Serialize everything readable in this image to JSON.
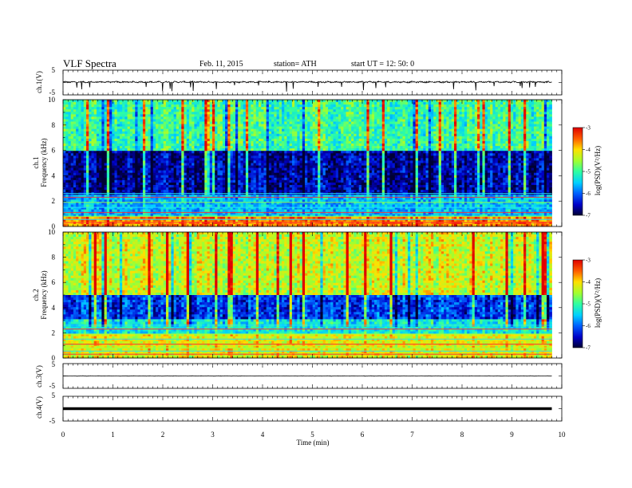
{
  "header": {
    "title": "VLF  Spectra",
    "date": "Feb. 11, 2015",
    "station": "station= ATH",
    "start": "start  UT  =    12: 50: 0"
  },
  "chart_data": [
    {
      "type": "line",
      "panel": "ch1-waveform",
      "ylabel": "ch.1(V)",
      "ylim": [
        -5,
        5
      ],
      "yticks": [
        "5",
        "-5"
      ],
      "xlim": [
        0,
        10
      ],
      "x_end": 9.8,
      "series": [
        {
          "baseline": 0.2,
          "amplitude": 0.4
        }
      ]
    },
    {
      "type": "heatmap",
      "panel": "ch1-spectrogram",
      "ylabel": "Frequency  (kHz)",
      "channel_label": "ch.1",
      "ylim": [
        0,
        10
      ],
      "yticks": [
        "10",
        "8",
        "6",
        "4",
        "2",
        "0"
      ],
      "xlim": [
        0,
        10
      ],
      "x_end": 9.8,
      "colorbar": {
        "label": "log(PSD)(V²/Hz)",
        "range": [
          -7,
          -3
        ],
        "ticks": [
          "-3",
          "-4",
          "-5",
          "-6",
          "-7"
        ]
      },
      "description_levels": [
        {
          "freq_range": [
            0,
            0.8
          ],
          "level": -3.6
        },
        {
          "freq_range": [
            0.8,
            2.5
          ],
          "level": -5.6
        },
        {
          "freq_range": [
            2.5,
            6
          ],
          "level": -6.6
        },
        {
          "freq_range": [
            6,
            10
          ],
          "level": -5.0
        }
      ]
    },
    {
      "type": "heatmap",
      "panel": "ch2-spectrogram",
      "ylabel": "Frequency  (kHz)",
      "channel_label": "ch.2",
      "ylim": [
        0,
        10
      ],
      "yticks": [
        "10",
        "8",
        "6",
        "4",
        "2",
        "0"
      ],
      "xlim": [
        0,
        10
      ],
      "x_end": 9.8,
      "colorbar": {
        "label": "log(PSD)(V²/Hz)",
        "range": [
          -7,
          -3
        ],
        "ticks": [
          "-3",
          "-4",
          "-5",
          "-6",
          "-7"
        ]
      },
      "description_levels": [
        {
          "freq_range": [
            0,
            2
          ],
          "level": -4.2
        },
        {
          "freq_range": [
            2,
            3
          ],
          "level": -5.3
        },
        {
          "freq_range": [
            3,
            5
          ],
          "level": -6.2
        },
        {
          "freq_range": [
            5,
            10
          ],
          "level": -4.3
        }
      ]
    },
    {
      "type": "line",
      "panel": "ch3-waveform",
      "ylabel": "ch.3(V)",
      "ylim": [
        -5,
        5
      ],
      "yticks": [
        "5",
        "-5"
      ],
      "xlim": [
        0,
        10
      ],
      "x_end": 9.8,
      "series": [
        {
          "baseline": 0.0,
          "amplitude": 0.1
        }
      ]
    },
    {
      "type": "line",
      "panel": "ch4-waveform",
      "ylabel": "ch.4(V)",
      "ylim": [
        -5,
        5
      ],
      "yticks": [
        "5",
        "-5"
      ],
      "xlim": [
        0,
        10
      ],
      "x_end": 9.8,
      "series": [
        {
          "baseline": 0.0,
          "amplitude": 0.0
        }
      ]
    }
  ],
  "x_axis": {
    "label": "Time  (min)",
    "ticks": [
      "0",
      "1",
      "2",
      "3",
      "4",
      "5",
      "6",
      "7",
      "8",
      "9",
      "10"
    ]
  }
}
